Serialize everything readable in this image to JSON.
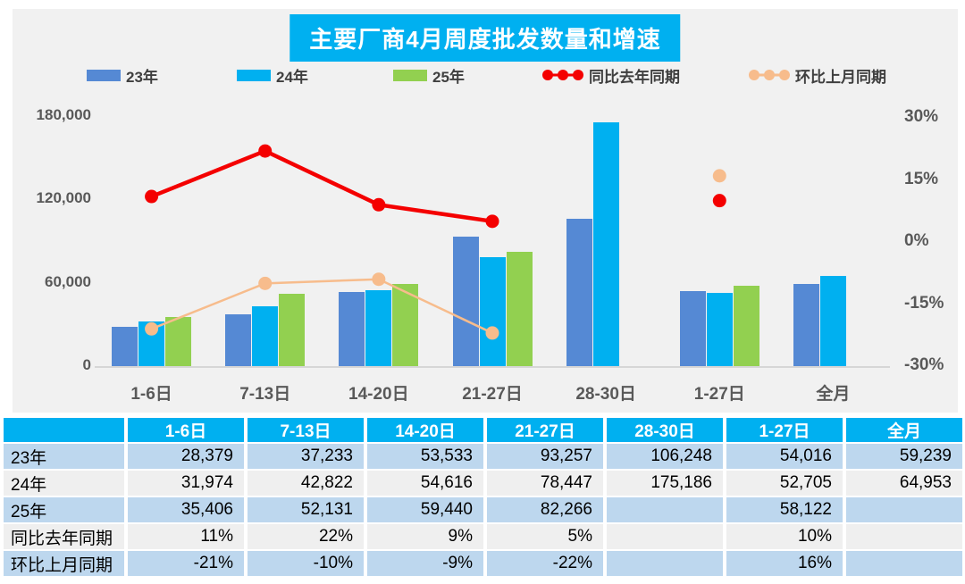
{
  "title": "主要厂商4月周度批发数量和增速",
  "colors": {
    "title_bg": "#00B0F0",
    "panel_bg": "#F1F1F1",
    "bar_23": "#5589D4",
    "bar_24": "#00B0F0",
    "bar_25": "#92D050",
    "line_yoy": "#F40000",
    "line_mom": "#F7BC8C",
    "table_header_bg": "#00B0F0",
    "table_row_blue": "#BDD7EE",
    "table_row_gray": "#EFEFEF",
    "axis_text": "#595959"
  },
  "chart_data": {
    "type": "bar",
    "subtype": "grouped bars with two percentage lines on secondary axis",
    "title": "主要厂商4月周度批发数量和增速",
    "categories": [
      "1-6日",
      "7-13日",
      "14-20日",
      "21-27日",
      "28-30日",
      "1-27日",
      "全月"
    ],
    "bar_series": [
      {
        "name": "23年",
        "color": "#5589D4",
        "values": [
          28379,
          37233,
          53533,
          93257,
          106248,
          54016,
          59239
        ]
      },
      {
        "name": "24年",
        "color": "#00B0F0",
        "values": [
          31974,
          42822,
          54616,
          78447,
          175186,
          52705,
          64953
        ]
      },
      {
        "name": "25年",
        "color": "#92D050",
        "values": [
          35406,
          52131,
          59440,
          82266,
          null,
          58122,
          null
        ]
      }
    ],
    "line_series": [
      {
        "name": "同比去年同期",
        "color": "#F40000",
        "width": 4.5,
        "values": [
          11,
          22,
          9,
          5,
          null,
          10,
          null
        ]
      },
      {
        "name": "环比上月同期",
        "color": "#F7BC8C",
        "width": 2.5,
        "values": [
          -21,
          -10,
          -9,
          -22,
          null,
          16,
          null
        ]
      }
    ],
    "left_axis": {
      "min": 0,
      "max": 180000,
      "ticks": [
        {
          "label": "180,000",
          "value": 180000
        },
        {
          "label": "120,000",
          "value": 120000
        },
        {
          "label": "60,000",
          "value": 60000
        },
        {
          "label": "0",
          "value": 0
        }
      ]
    },
    "right_axis": {
      "min": -30,
      "max": 30,
      "ticks": [
        {
          "label": "30%",
          "value": 30
        },
        {
          "label": "15%",
          "value": 15
        },
        {
          "label": "0%",
          "value": 0
        },
        {
          "label": "-15%",
          "value": -15
        },
        {
          "label": "-30%",
          "value": -30
        }
      ]
    },
    "legend_position": "top",
    "grid": false
  },
  "table": {
    "header": [
      "",
      "1-6日",
      "7-13日",
      "14-20日",
      "21-27日",
      "28-30日",
      "1-27日",
      "全月"
    ],
    "rows": [
      {
        "label": "23年",
        "cells": [
          "28,379",
          "37,233",
          "53,533",
          "93,257",
          "106,248",
          "54,016",
          "59,239"
        ]
      },
      {
        "label": "24年",
        "cells": [
          "31,974",
          "42,822",
          "54,616",
          "78,447",
          "175,186",
          "52,705",
          "64,953"
        ]
      },
      {
        "label": "25年",
        "cells": [
          "35,406",
          "52,131",
          "59,440",
          "82,266",
          "",
          "58,122",
          ""
        ]
      },
      {
        "label": "同比去年同期",
        "cells": [
          "11%",
          "22%",
          "9%",
          "5%",
          "",
          "10%",
          ""
        ]
      },
      {
        "label": "环比上月同期",
        "cells": [
          "-21%",
          "-10%",
          "-9%",
          "-22%",
          "",
          "16%",
          ""
        ]
      }
    ]
  }
}
